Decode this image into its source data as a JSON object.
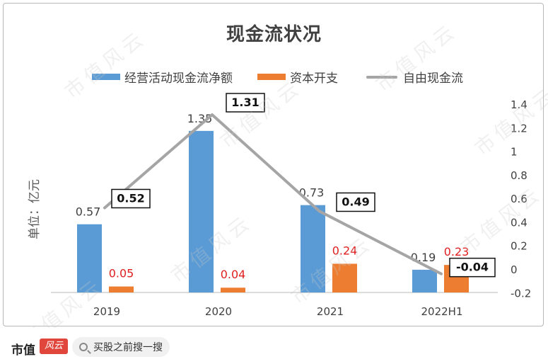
{
  "chart_data": {
    "type": "bar",
    "title": "现金流状况",
    "ylabel": "单位：亿元",
    "categories": [
      "2019",
      "2020",
      "2021",
      "2022H1"
    ],
    "series": [
      {
        "name": "经营活动现金流净额",
        "type": "bar",
        "color": "#5b9bd5",
        "values": [
          0.57,
          1.35,
          0.73,
          0.19
        ],
        "labels": [
          "0.57",
          "1.35",
          "0.73",
          "0.19"
        ]
      },
      {
        "name": "资本开支",
        "type": "bar",
        "color": "#ed7d31",
        "values": [
          0.05,
          0.04,
          0.24,
          0.23
        ],
        "labels": [
          "0.05",
          "0.04",
          "0.24",
          "0.23"
        ]
      },
      {
        "name": "自由现金流",
        "type": "line",
        "color": "#a5a5a5",
        "axis": "right",
        "values": [
          0.52,
          1.31,
          0.49,
          -0.04
        ],
        "labels": [
          "0.52",
          "1.31",
          "0.49",
          "-0.04"
        ]
      }
    ],
    "y2lim": [
      -0.2,
      1.4
    ],
    "y2ticks": [
      "1.4",
      "1.2",
      "1",
      "0.8",
      "0.6",
      "0.4",
      "0.2",
      "0",
      "-0.2"
    ],
    "legend_position": "top",
    "grid": false
  },
  "footer": {
    "brand": "市值",
    "logo_text": "风云",
    "search_text": "买股之前搜一搜"
  },
  "watermark": "市值风云"
}
